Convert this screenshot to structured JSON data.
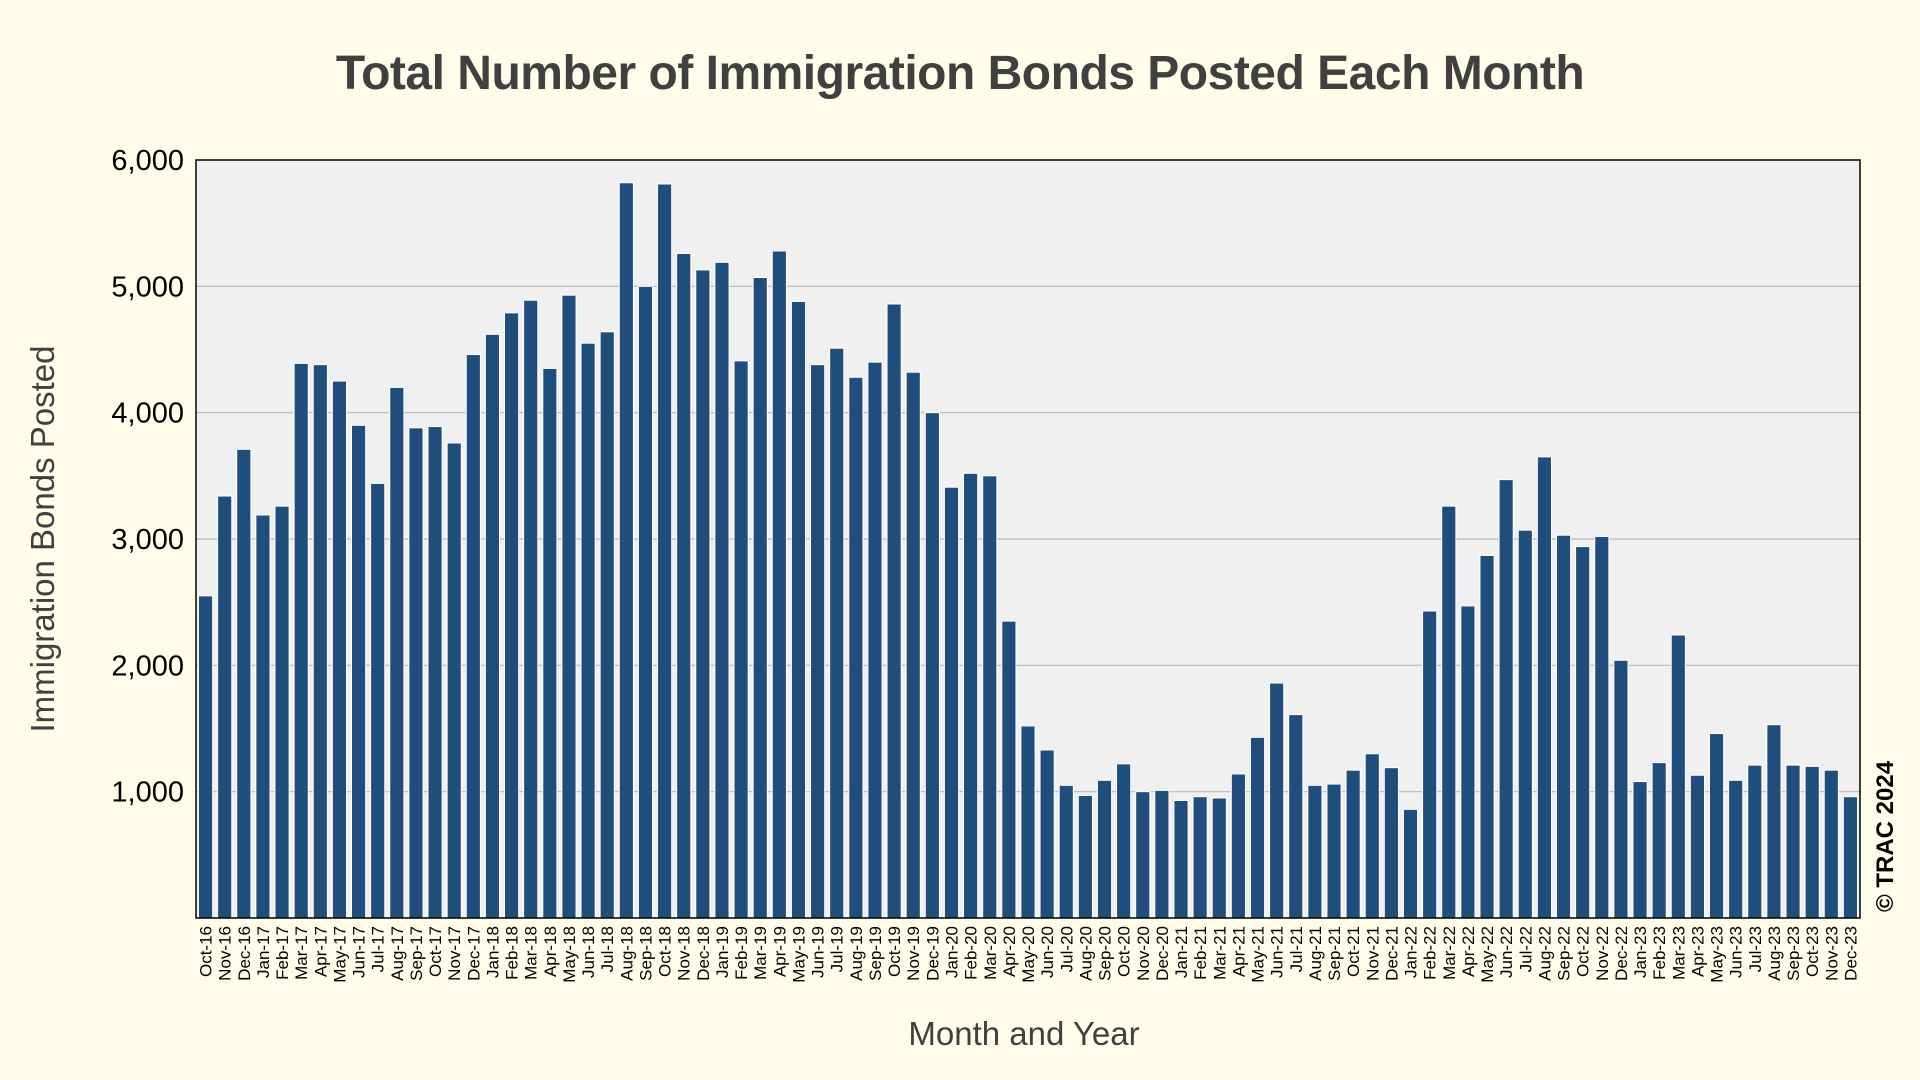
{
  "chart_data": {
    "type": "bar",
    "title": "Total Number of Immigration Bonds Posted Each Month",
    "xlabel": "Month and Year",
    "ylabel": "Immigration Bonds Posted",
    "ylim": [
      0,
      6000
    ],
    "yticks": [
      1000,
      2000,
      3000,
      4000,
      5000,
      6000
    ],
    "ytick_labels": [
      "1,000",
      "2,000",
      "3,000",
      "4,000",
      "5,000",
      "6,000"
    ],
    "grid": true,
    "bar_color": "#1f4e7d",
    "plot_background": "#f0f0f0",
    "page_background": "#fffdea",
    "credit": "© TRAC 2024",
    "categories": [
      "Oct-16",
      "Nov-16",
      "Dec-16",
      "Jan-17",
      "Feb-17",
      "Mar-17",
      "Apr-17",
      "May-17",
      "Jun-17",
      "Jul-17",
      "Aug-17",
      "Sep-17",
      "Oct-17",
      "Nov-17",
      "Dec-17",
      "Jan-18",
      "Feb-18",
      "Mar-18",
      "Apr-18",
      "May-18",
      "Jun-18",
      "Jul-18",
      "Aug-18",
      "Sep-18",
      "Oct-18",
      "Nov-18",
      "Dec-18",
      "Jan-19",
      "Feb-19",
      "Mar-19",
      "Apr-19",
      "May-19",
      "Jun-19",
      "Jul-19",
      "Aug-19",
      "Sep-19",
      "Oct-19",
      "Nov-19",
      "Dec-19",
      "Jan-20",
      "Feb-20",
      "Mar-20",
      "Apr-20",
      "May-20",
      "Jun-20",
      "Jul-20",
      "Aug-20",
      "Sep-20",
      "Oct-20",
      "Nov-20",
      "Dec-20",
      "Jan-21",
      "Feb-21",
      "Mar-21",
      "Apr-21",
      "May-21",
      "Jun-21",
      "Jul-21",
      "Aug-21",
      "Sep-21",
      "Oct-21",
      "Nov-21",
      "Dec-21",
      "Jan-22",
      "Feb-22",
      "Mar-22",
      "Apr-22",
      "May-22",
      "Jun-22",
      "Jul-22",
      "Aug-22",
      "Sep-22",
      "Oct-22",
      "Nov-22",
      "Dec-22",
      "Jan-23",
      "Feb-23",
      "Mar-23",
      "Apr-23",
      "May-23",
      "Jun-23",
      "Jul-23",
      "Aug-23",
      "Sep-23",
      "Oct-23",
      "Nov-23",
      "Dec-23"
    ],
    "values": [
      2550,
      3340,
      3710,
      3190,
      3260,
      4390,
      4380,
      4250,
      3900,
      3440,
      4200,
      3880,
      3890,
      3760,
      4460,
      4620,
      4790,
      4890,
      4350,
      4930,
      4550,
      4640,
      5820,
      5000,
      5810,
      5260,
      5130,
      5190,
      4410,
      5070,
      5280,
      4880,
      4380,
      4510,
      4280,
      4400,
      4860,
      4320,
      4000,
      3410,
      3520,
      3500,
      2350,
      1520,
      1330,
      1050,
      970,
      1090,
      1220,
      1000,
      1010,
      930,
      960,
      950,
      1140,
      1430,
      1860,
      1610,
      1050,
      1060,
      1170,
      1300,
      1190,
      860,
      2430,
      3260,
      2470,
      2870,
      3470,
      3070,
      3650,
      3030,
      2940,
      3020,
      2040,
      1080,
      1230,
      2240,
      1130,
      1460,
      1090,
      1210,
      1530,
      1210,
      1200,
      1170,
      960
    ]
  }
}
